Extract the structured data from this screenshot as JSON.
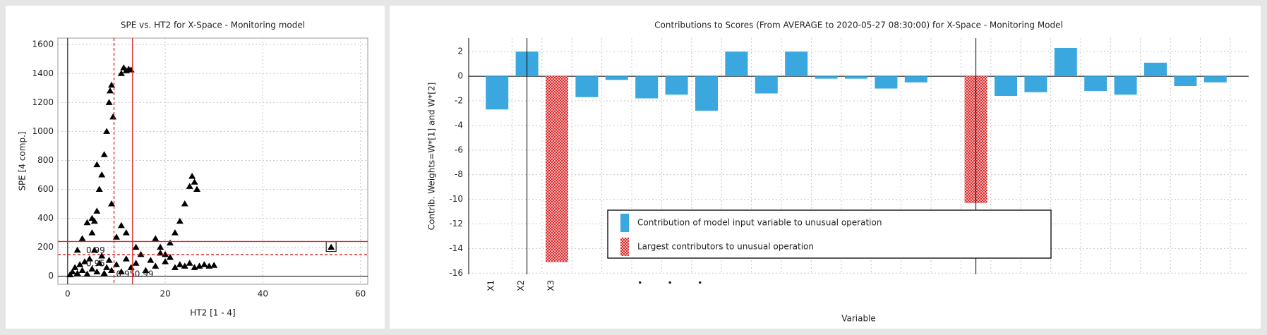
{
  "chart_data": [
    {
      "type": "scatter",
      "title": "SPE vs. HT2 for X-Space - Monitoring model",
      "x_label": "HT2 [1 - 4]",
      "y_label": "SPE [4 comp.]",
      "color": "#000000",
      "x": [
        0.5,
        1,
        1.5,
        2,
        2.5,
        3,
        3.5,
        4,
        4.5,
        5,
        5.5,
        6,
        6.5,
        7,
        7.5,
        8,
        8.5,
        9,
        10,
        11,
        12,
        13,
        14,
        15,
        16,
        17,
        18,
        19,
        20,
        21,
        22,
        23,
        24,
        25,
        26,
        27,
        28,
        29,
        30,
        5,
        5.5,
        6,
        6.5,
        7,
        7.5,
        8,
        8.5,
        9,
        8.7,
        9.3,
        11,
        11.5,
        12,
        12.5,
        13,
        20,
        21,
        22,
        23,
        24,
        25,
        25.5,
        26,
        26.5,
        19,
        18,
        2,
        3,
        4,
        5,
        10,
        11,
        9,
        12,
        14,
        6,
        54
      ],
      "values": [
        10,
        30,
        60,
        20,
        80,
        40,
        100,
        15,
        120,
        50,
        180,
        30,
        90,
        140,
        20,
        60,
        110,
        40,
        80,
        30,
        120,
        60,
        90,
        150,
        40,
        110,
        70,
        160,
        100,
        130,
        60,
        80,
        70,
        90,
        60,
        70,
        80,
        70,
        75,
        300,
        380,
        450,
        600,
        700,
        840,
        1000,
        1200,
        1320,
        1280,
        1100,
        1400,
        1440,
        1420,
        1430,
        1425,
        150,
        230,
        300,
        380,
        500,
        620,
        690,
        650,
        600,
        200,
        260,
        180,
        260,
        370,
        400,
        270,
        350,
        500,
        300,
        200,
        770,
        200
      ],
      "selected": 76,
      "limits": [
        {
          "axis": "y",
          "value": 240,
          "label": "0.99",
          "dashed": false,
          "color": "#e02020"
        },
        {
          "axis": "y",
          "value": 150,
          "label": "0.95",
          "dashed": true,
          "color": "#e02020"
        },
        {
          "axis": "x",
          "value": 9.5,
          "label": "0.95",
          "dashed": true,
          "color": "#e02020"
        },
        {
          "axis": "x",
          "value": 13.3,
          "label": "0.99",
          "dashed": false,
          "color": "#e02020"
        }
      ],
      "xlim": [
        -2,
        61.5
      ],
      "xticks": [
        0,
        20,
        40,
        60
      ],
      "ylim": [
        -55,
        1645
      ],
      "yticks": [
        0,
        200,
        400,
        600,
        800,
        1000,
        1200,
        1400,
        1600
      ],
      "grid": true
    },
    {
      "type": "bar",
      "title": "Contributions to Scores (From AVERAGE to 2020-05-27 08:30:00) for X-Space - Monitoring Model",
      "x_label": "Variable",
      "y_label": "Contrib. Weights=W*[1] and W*[2]",
      "categories": [
        "X1",
        "X2",
        "X3",
        null,
        null,
        "•",
        "•",
        "•",
        null,
        null,
        null,
        null,
        null,
        null,
        null,
        null,
        null,
        null,
        null,
        null,
        null,
        null,
        null,
        null,
        null
      ],
      "series": [
        {
          "name": "Contribution of model input variable to unusual operation",
          "color": "#3aa8df",
          "hatched": false,
          "values": [
            -2.7,
            2.0,
            null,
            -1.7,
            -0.3,
            -1.8,
            -1.5,
            -2.8,
            2.0,
            -1.4,
            2.0,
            -0.2,
            -0.2,
            -1.0,
            -0.5,
            null,
            null,
            -1.6,
            -1.3,
            2.3,
            -1.2,
            -1.5,
            1.1,
            -0.8,
            -0.5
          ]
        },
        {
          "name": "Largest contributors to unusual operation",
          "color": "#e02828",
          "hatched": true,
          "values": [
            null,
            null,
            -15.1,
            null,
            null,
            null,
            null,
            null,
            null,
            null,
            null,
            null,
            null,
            null,
            null,
            null,
            -10.3,
            null,
            null,
            null,
            null,
            null,
            null,
            null,
            null
          ]
        }
      ],
      "marker_lines": [
        1,
        16
      ],
      "ylim": [
        -16.1,
        3.1
      ],
      "yticks": [
        -16,
        -14,
        -12,
        -10,
        -8,
        -6,
        -4,
        -2,
        0,
        2
      ],
      "grid": true
    }
  ]
}
